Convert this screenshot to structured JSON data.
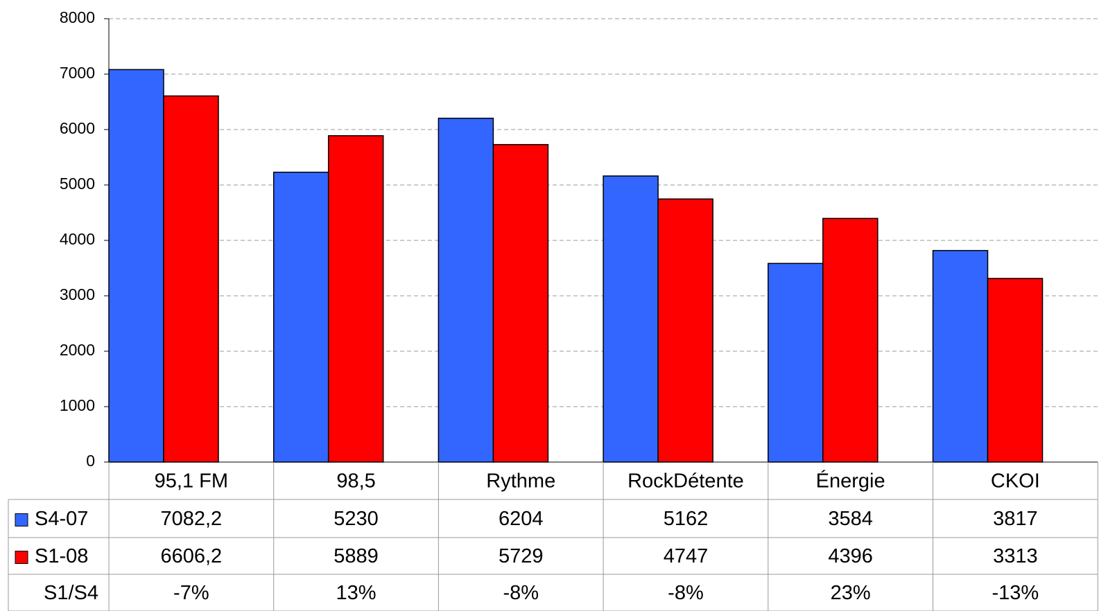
{
  "chart_data": {
    "type": "bar",
    "categories": [
      "95,1 FM",
      "98,5",
      "Rythme",
      "RockDétente",
      "Énergie",
      "CKOI"
    ],
    "series": [
      {
        "name": "S4-07",
        "color": "#3366ff",
        "values": [
          7082.2,
          5230,
          6204,
          5162,
          3584,
          3817
        ],
        "value_labels": [
          "7082,2",
          "5230",
          "6204",
          "5162",
          "3584",
          "3817"
        ]
      },
      {
        "name": "S1-08",
        "color": "#ff0000",
        "values": [
          6606.2,
          5889,
          5729,
          4747,
          4396,
          3313
        ],
        "value_labels": [
          "6606,2",
          "5889",
          "5729",
          "4747",
          "4396",
          "3313"
        ]
      }
    ],
    "ratio": {
      "name": "S1/S4",
      "values": [
        -7,
        13,
        -8,
        -8,
        23,
        -13
      ],
      "value_labels": [
        "-7%",
        "13%",
        "-8%",
        "-8%",
        "23%",
        "-13%"
      ]
    },
    "ylim": [
      0,
      8000
    ],
    "yticks": [
      0,
      1000,
      2000,
      3000,
      4000,
      5000,
      6000,
      7000,
      8000
    ],
    "grid": true
  }
}
